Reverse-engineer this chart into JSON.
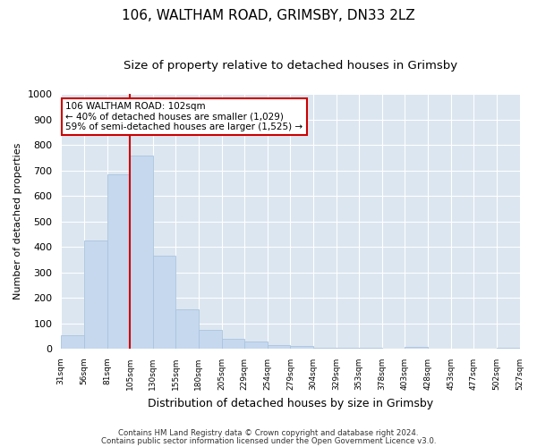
{
  "title": "106, WALTHAM ROAD, GRIMSBY, DN33 2LZ",
  "subtitle": "Size of property relative to detached houses in Grimsby",
  "xlabel": "Distribution of detached houses by size in Grimsby",
  "ylabel": "Number of detached properties",
  "bar_values": [
    52,
    425,
    685,
    760,
    365,
    155,
    75,
    40,
    27,
    15,
    10,
    5,
    5,
    3,
    0,
    8,
    0,
    0,
    0,
    5
  ],
  "bin_labels": [
    "31sqm",
    "56sqm",
    "81sqm",
    "105sqm",
    "130sqm",
    "155sqm",
    "180sqm",
    "205sqm",
    "229sqm",
    "254sqm",
    "279sqm",
    "304sqm",
    "329sqm",
    "353sqm",
    "378sqm",
    "403sqm",
    "428sqm",
    "453sqm",
    "477sqm",
    "502sqm",
    "527sqm"
  ],
  "bar_color": "#c5d8ee",
  "bar_edge_color": "#aac4df",
  "vline_x_index": 3,
  "vline_color": "#cc0000",
  "ylim": [
    0,
    1000
  ],
  "yticks": [
    0,
    100,
    200,
    300,
    400,
    500,
    600,
    700,
    800,
    900,
    1000
  ],
  "annotation_title": "106 WALTHAM ROAD: 102sqm",
  "annotation_line1": "← 40% of detached houses are smaller (1,029)",
  "annotation_line2": "59% of semi-detached houses are larger (1,525) →",
  "annotation_box_color": "#ffffff",
  "annotation_box_edge": "#cc0000",
  "footer1": "Contains HM Land Registry data © Crown copyright and database right 2024.",
  "footer2": "Contains public sector information licensed under the Open Government Licence v3.0.",
  "fig_background": "#ffffff",
  "plot_background": "#dce6f0",
  "grid_color": "#ffffff",
  "title_fontsize": 11,
  "subtitle_fontsize": 9.5,
  "ylabel_fontsize": 8,
  "xlabel_fontsize": 9
}
